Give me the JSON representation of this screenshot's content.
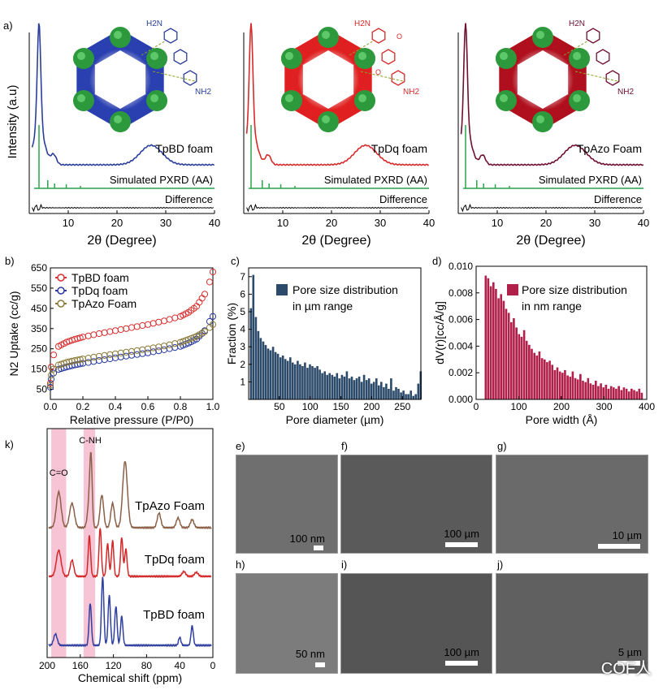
{
  "panel_labels": {
    "a": "a)",
    "b": "b)",
    "c": "c)",
    "d": "d)",
    "k": "k)",
    "e": "e)",
    "f": "f)",
    "g": "g)",
    "h": "h)",
    "i": "i)",
    "j": "j)"
  },
  "panel_a": {
    "ylabel": "Intensity (a.u)",
    "xlabel": "2θ (Degree)",
    "xticks": [
      "10",
      "20",
      "30",
      "40"
    ],
    "simulated_label": "Simulated PXRD (AA)",
    "difference_label": "Difference",
    "subplots": [
      {
        "name": "TpBD foam",
        "color": "#2b3f9a",
        "pore_color": "#2a3fb0",
        "peak_pos": 4,
        "broad_pos": 27
      },
      {
        "name": "TpDq foam",
        "color": "#d62a2a",
        "pore_color": "#e02020",
        "peak_pos": 3.5,
        "broad_pos": 27
      },
      {
        "name": "TpAzo Foam",
        "color": "#6e1030",
        "pore_color": "#b0101e",
        "peak_pos": 3.5,
        "broad_pos": 26
      }
    ],
    "sim_color": "#2aa44a",
    "molecules": [
      "H2N",
      "NH2",
      "H2N",
      "NH2",
      "H2N",
      "NH2",
      "O",
      "O"
    ]
  },
  "chart_data": [
    {
      "type": "scatter",
      "panel": "b",
      "xlabel": "Relative pressure (P/P0)",
      "ylabel": "N2 Uptake (cc/g)",
      "xlim": [
        0,
        1.0
      ],
      "ylim": [
        0,
        650
      ],
      "xticks": [
        "0.0",
        "0.2",
        "0.4",
        "0.6",
        "0.8",
        "1.0"
      ],
      "yticks": [
        "50",
        "150",
        "250",
        "350",
        "450",
        "550",
        "650"
      ],
      "legend": "top-left",
      "series": [
        {
          "name": "TpBD foam",
          "color": "#d93030",
          "points": [
            [
              0.0,
              80
            ],
            [
              0.005,
              160
            ],
            [
              0.02,
              220
            ],
            [
              0.05,
              262
            ],
            [
              0.1,
              283
            ],
            [
              0.15,
              297
            ],
            [
              0.2,
              308
            ],
            [
              0.3,
              325
            ],
            [
              0.4,
              340
            ],
            [
              0.5,
              355
            ],
            [
              0.6,
              370
            ],
            [
              0.7,
              388
            ],
            [
              0.8,
              410
            ],
            [
              0.85,
              430
            ],
            [
              0.9,
              460
            ],
            [
              0.95,
              520
            ],
            [
              0.98,
              580
            ],
            [
              1.0,
              630
            ]
          ]
        },
        {
          "name": "TpDq foam",
          "color": "#2a3aa0",
          "points": [
            [
              0.0,
              60
            ],
            [
              0.005,
              100
            ],
            [
              0.02,
              130
            ],
            [
              0.05,
              148
            ],
            [
              0.1,
              160
            ],
            [
              0.15,
              170
            ],
            [
              0.2,
              178
            ],
            [
              0.3,
              192
            ],
            [
              0.4,
              205
            ],
            [
              0.5,
              218
            ],
            [
              0.6,
              230
            ],
            [
              0.7,
              245
            ],
            [
              0.8,
              262
            ],
            [
              0.85,
              278
            ],
            [
              0.9,
              298
            ],
            [
              0.95,
              340
            ],
            [
              0.98,
              385
            ],
            [
              1.0,
              410
            ]
          ]
        },
        {
          "name": "TpAzo Foam",
          "color": "#8a7a38",
          "points": [
            [
              0.0,
              70
            ],
            [
              0.005,
              120
            ],
            [
              0.02,
              150
            ],
            [
              0.05,
              170
            ],
            [
              0.1,
              183
            ],
            [
              0.15,
              192
            ],
            [
              0.2,
              200
            ],
            [
              0.3,
              213
            ],
            [
              0.4,
              225
            ],
            [
              0.5,
              237
            ],
            [
              0.6,
              250
            ],
            [
              0.7,
              264
            ],
            [
              0.8,
              282
            ],
            [
              0.85,
              296
            ],
            [
              0.9,
              312
            ],
            [
              0.95,
              335
            ],
            [
              0.98,
              355
            ],
            [
              1.0,
              370
            ]
          ]
        }
      ]
    },
    {
      "type": "bar",
      "panel": "c",
      "xlabel": "Pore diameter (µm)",
      "ylabel": "Fraction (%)",
      "xlim": [
        0,
        280
      ],
      "ylim": [
        0,
        7.5
      ],
      "xticks": [
        "50",
        "100",
        "150",
        "200",
        "250"
      ],
      "yticks": [
        "1",
        "2",
        "3",
        "4",
        "5",
        "6",
        "7"
      ],
      "legend": "top-right",
      "series": [
        {
          "name": "Pore size distribution in µm range",
          "color": "#2c4a6a"
        }
      ],
      "bin_start": 2,
      "bin_width": 4,
      "values": [
        5.2,
        7.1,
        4.7,
        3.9,
        3.5,
        3.3,
        3.1,
        2.9,
        2.8,
        3.0,
        2.7,
        2.6,
        2.4,
        2.5,
        2.3,
        2.2,
        2.4,
        2.1,
        2.0,
        2.2,
        2.0,
        1.9,
        2.1,
        1.8,
        2.0,
        1.9,
        1.8,
        1.9,
        1.7,
        1.5,
        1.6,
        1.4,
        1.5,
        1.4,
        1.3,
        1.5,
        1.2,
        1.4,
        1.3,
        1.6,
        1.2,
        1.3,
        1.1,
        1.2,
        1.3,
        1.0,
        1.4,
        1.1,
        1.2,
        0.9,
        1.0,
        1.2,
        0.8,
        1.0,
        0.7,
        0.9,
        0.6,
        1.2,
        0.5,
        0.7,
        0.6,
        0.4,
        0.5,
        0.3,
        0.3,
        0.5,
        0.2,
        0.3,
        0.9,
        1.6
      ]
    },
    {
      "type": "bar",
      "panel": "d",
      "xlabel": "Pore width (Å)",
      "ylabel": "dV(r)[cc/Å/g]",
      "xlim": [
        0,
        400
      ],
      "ylim": [
        0,
        0.01
      ],
      "xticks": [
        "0",
        "100",
        "200",
        "300",
        "400"
      ],
      "yticks": [
        "0.000",
        "0.002",
        "0.004",
        "0.006",
        "0.008",
        "0.010"
      ],
      "legend": "top-right",
      "series": [
        {
          "name": "Pore size distribution in nm range",
          "color": "#b0204a"
        }
      ],
      "bin_start": 20,
      "bin_width": 6,
      "values": [
        0.0093,
        0.0091,
        0.0085,
        0.0088,
        0.0083,
        0.0076,
        0.0079,
        0.0074,
        0.0068,
        0.0065,
        0.0058,
        0.0061,
        0.0054,
        0.0049,
        0.0047,
        0.0052,
        0.0044,
        0.0041,
        0.0038,
        0.0035,
        0.0033,
        0.0036,
        0.0031,
        0.003,
        0.0028,
        0.0029,
        0.0026,
        0.0022,
        0.0024,
        0.0021,
        0.002,
        0.0022,
        0.0018,
        0.0017,
        0.0021,
        0.0016,
        0.0015,
        0.0019,
        0.0014,
        0.0013,
        0.0016,
        0.0012,
        0.0011,
        0.0014,
        0.001,
        0.0012,
        0.0009,
        0.0011,
        0.0008,
        0.001,
        0.0009,
        0.0008,
        0.001,
        0.0007,
        0.0009,
        0.0008,
        0.0006,
        0.0008,
        0.0007,
        0.0006,
        0.0008,
        0.0005
      ]
    },
    {
      "type": "line",
      "panel": "k",
      "xlabel": "Chemical shift (ppm)",
      "xlim": [
        200,
        0
      ],
      "xticks": [
        "200",
        "160",
        "120",
        "80",
        "40",
        "0"
      ],
      "annotations": [
        "C-NH",
        "C=O"
      ],
      "series": [
        {
          "name": "TpAzo Foam",
          "color": "#8a6048"
        },
        {
          "name": "TpDq foam",
          "color": "#d42828"
        },
        {
          "name": "TpBD foam",
          "color": "#3040a0"
        }
      ]
    }
  ],
  "micrographs": [
    {
      "id": "e",
      "scale": "100 nm"
    },
    {
      "id": "f",
      "scale": "100 µm"
    },
    {
      "id": "g",
      "scale": "10 µm"
    },
    {
      "id": "h",
      "scale": "50 nm"
    },
    {
      "id": "i",
      "scale": "100 µm"
    },
    {
      "id": "j",
      "scale": "5 µm"
    }
  ],
  "watermark": "COF人"
}
